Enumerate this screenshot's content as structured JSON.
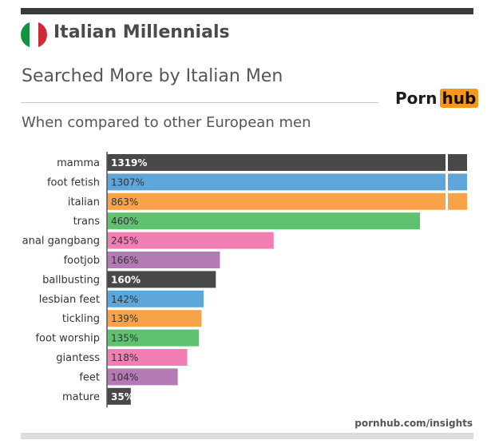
{
  "header": {
    "title": "Italian Millennials",
    "subtitle": "Searched More by Italian Men",
    "description": "When compared to other European men",
    "logo_left": "Porn",
    "logo_right": "hub",
    "flag_colors": [
      "#159143",
      "#ffffff",
      "#ce2b37"
    ]
  },
  "footer": {
    "source": "pornhub.com/insights"
  },
  "colors": {
    "palette": [
      "#484848",
      "#5ea6da",
      "#f8a34a",
      "#60c270",
      "#f27fb4",
      "#b37ab5"
    ],
    "accent": "#f7971e"
  },
  "chart_data": {
    "type": "bar",
    "orientation": "horizontal",
    "categories": [
      "mamma",
      "foot fetish",
      "italian",
      "trans",
      "anal gangbang",
      "footjob",
      "ballbusting",
      "lesbian feet",
      "tickling",
      "foot worship",
      "giantess",
      "feet",
      "mature"
    ],
    "values": [
      1319,
      1307,
      863,
      460,
      245,
      166,
      160,
      142,
      139,
      135,
      118,
      104,
      35
    ],
    "labels": [
      "1319%",
      "1307%",
      "863%",
      "460%",
      "245%",
      "166%",
      "160%",
      "142%",
      "139%",
      "135%",
      "118%",
      "104%",
      "35%"
    ],
    "axis_break": true,
    "bar_colors": [
      "#484848",
      "#5ea6da",
      "#f8a34a",
      "#60c270",
      "#f27fb4",
      "#b37ab5",
      "#484848",
      "#5ea6da",
      "#f8a34a",
      "#60c270",
      "#f27fb4",
      "#b37ab5",
      "#484848"
    ],
    "label_colors": [
      "#ffffff",
      "#333333",
      "#333333",
      "#333333",
      "#333333",
      "#333333",
      "#ffffff",
      "#333333",
      "#333333",
      "#333333",
      "#333333",
      "#333333",
      "#ffffff"
    ]
  }
}
